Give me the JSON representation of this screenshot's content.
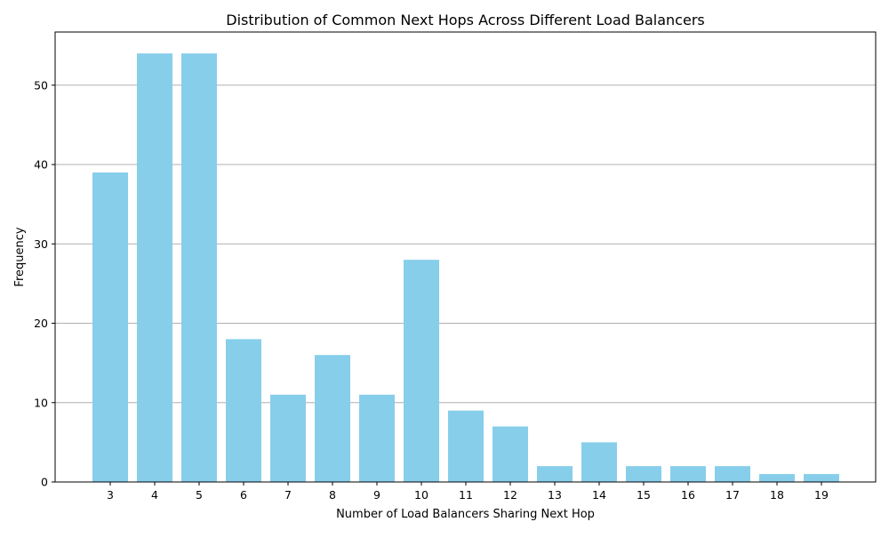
{
  "chart_data": {
    "type": "bar",
    "title": "Distribution of Common Next Hops Across Different Load Balancers",
    "xlabel": "Number of Load Balancers Sharing Next Hop",
    "ylabel": "Frequency",
    "categories": [
      "3",
      "4",
      "5",
      "6",
      "7",
      "8",
      "9",
      "10",
      "11",
      "12",
      "13",
      "14",
      "15",
      "16",
      "17",
      "18",
      "19"
    ],
    "values": [
      39,
      54,
      54,
      18,
      11,
      16,
      11,
      28,
      9,
      7,
      2,
      5,
      2,
      2,
      2,
      1,
      1
    ],
    "ylim": [
      0,
      56.7
    ],
    "yticks": [
      0,
      10,
      20,
      30,
      40,
      50
    ],
    "grid": "y",
    "bar_color": "#87ceeb",
    "grid_color": "#b0b0b0"
  }
}
